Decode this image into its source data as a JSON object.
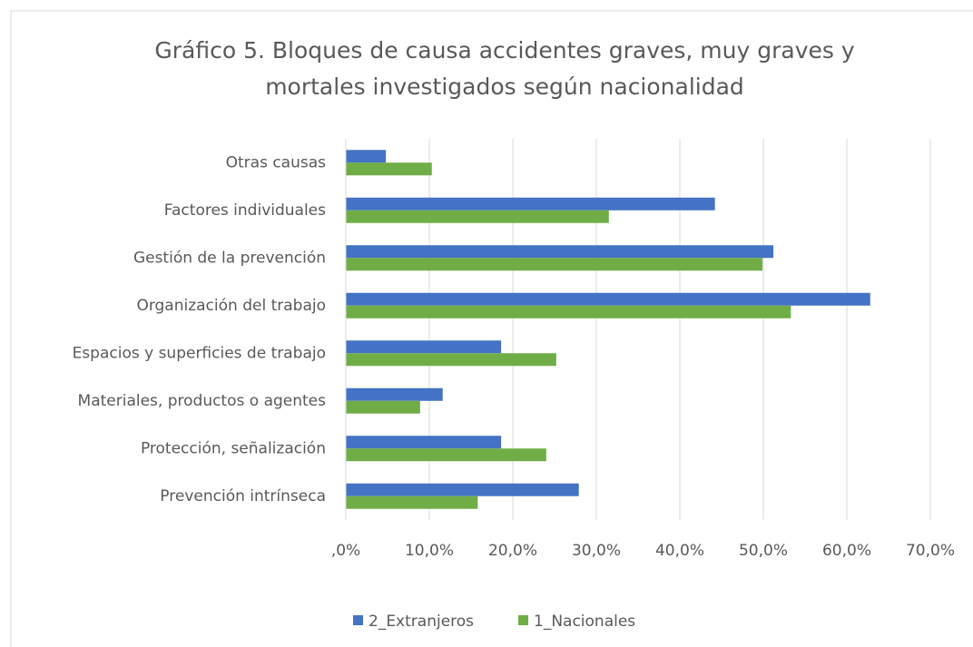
{
  "chart_data": {
    "type": "bar",
    "orientation": "horizontal",
    "title": "Gráfico 5. Bloques de causa accidentes graves, muy graves y mortales investigados según nacionalidad",
    "categories": [
      "Otras causas",
      "Factores individuales",
      "Gestión de la prevención",
      "Organización del trabajo",
      "Espacios y superficies de trabajo",
      "Materiales, productos o agentes",
      "Protección, señalización",
      "Prevención intrínseca"
    ],
    "series": [
      {
        "name": "2_Extranjeros",
        "color": "#4472c4",
        "values": [
          4.8,
          44.2,
          51.2,
          62.8,
          18.6,
          11.6,
          18.6,
          27.9
        ]
      },
      {
        "name": "1_Nacionales",
        "color": "#70ad47",
        "values": [
          10.3,
          31.5,
          49.9,
          53.3,
          25.2,
          8.9,
          24.0,
          15.8
        ]
      }
    ],
    "xlim": [
      0,
      70
    ],
    "xticks": [
      {
        "value": 0,
        "label": ",0%"
      },
      {
        "value": 10,
        "label": "10,0%"
      },
      {
        "value": 20,
        "label": "20,0%"
      },
      {
        "value": 30,
        "label": "30,0%"
      },
      {
        "value": 40,
        "label": "40,0%"
      },
      {
        "value": 50,
        "label": "50,0%"
      },
      {
        "value": 60,
        "label": "60,0%"
      },
      {
        "value": 70,
        "label": "70,0%"
      }
    ],
    "grid": true,
    "legend": "bottom"
  }
}
